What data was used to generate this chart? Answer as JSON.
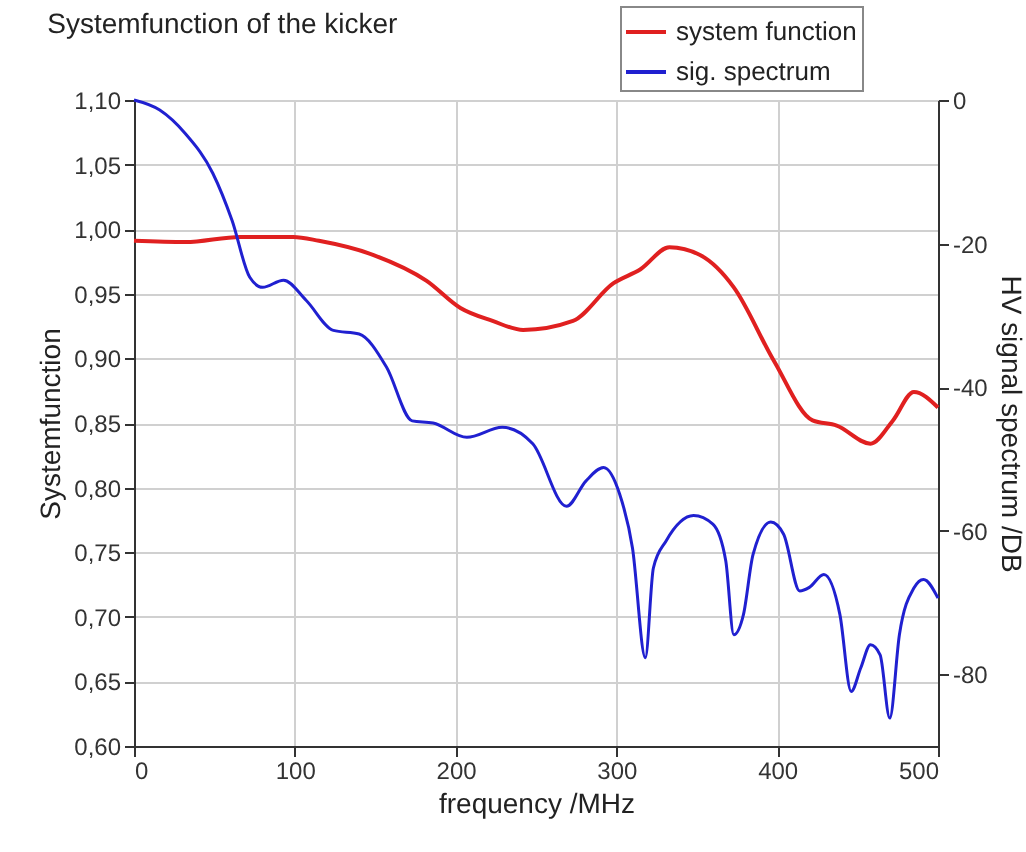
{
  "chart_data": {
    "type": "line",
    "title": "Systemfunction of the kicker",
    "xlabel": "frequency /MHz",
    "ylabel": "Systemfunction",
    "y2label": "HV signal spectrum /DB",
    "xlim": [
      0,
      500
    ],
    "xticks": [
      0,
      100,
      200,
      300,
      400,
      500
    ],
    "ylim": [
      0.6,
      1.1
    ],
    "yticks": [
      {
        "value": 0.6,
        "label": "0,60"
      },
      {
        "value": 0.65,
        "label": "0,65"
      },
      {
        "value": 0.7,
        "label": "0,70"
      },
      {
        "value": 0.75,
        "label": "0,75"
      },
      {
        "value": 0.8,
        "label": "0,80"
      },
      {
        "value": 0.85,
        "label": "0,85"
      },
      {
        "value": 0.9,
        "label": "0,90"
      },
      {
        "value": 0.95,
        "label": "0,95"
      },
      {
        "value": 1.0,
        "label": "1,00"
      },
      {
        "value": 1.05,
        "label": "1,05"
      },
      {
        "value": 1.1,
        "label": "1,10"
      }
    ],
    "y2lim": [
      -90,
      0
    ],
    "y2ticks": [
      0,
      -20,
      -40,
      -60,
      -80
    ],
    "grid": true,
    "legend": "top right",
    "line_style": "solid",
    "series": [
      {
        "name": "system function",
        "color": "#e02020",
        "x": [
          0,
          32,
          66,
          99,
          115,
          149,
          182,
          203,
          223,
          242,
          273,
          298,
          315,
          333,
          352,
          373,
          398,
          422,
          437,
          458,
          472,
          485,
          500
        ],
        "values": [
          0.991,
          0.99,
          0.994,
          0.994,
          0.991,
          0.98,
          0.96,
          0.939,
          0.929,
          0.922,
          0.929,
          0.958,
          0.969,
          0.986,
          0.98,
          0.955,
          0.898,
          0.852,
          0.848,
          0.834,
          0.852,
          0.874,
          0.862
        ]
      },
      {
        "name": "sig. spectrum",
        "color": "#2020d0",
        "axis": "y2",
        "x": [
          0,
          16,
          32,
          49,
          61,
          72,
          80,
          93,
          107,
          124,
          140,
          157,
          173,
          186,
          207,
          229,
          248,
          269,
          281,
          292,
          302,
          310,
          318,
          323,
          331,
          348,
          360,
          368,
          373,
          379,
          385,
          396,
          404,
          414,
          420,
          429,
          439,
          446,
          452,
          458,
          464,
          470,
          476,
          485,
          491,
          500
        ],
        "values": [
          0,
          -1.4,
          -4.7,
          -10.2,
          -16.8,
          -24.7,
          -26.1,
          -25.1,
          -27.9,
          -32.1,
          -32.6,
          -37.2,
          -44.7,
          -45.0,
          -47.0,
          -45.6,
          -47.9,
          -56.6,
          -53.1,
          -51.2,
          -54.9,
          -62.4,
          -77.7,
          -65.2,
          -61.4,
          -57.9,
          -59.1,
          -64.2,
          -74.5,
          -71.7,
          -63.3,
          -58.8,
          -60.5,
          -68.4,
          -67.9,
          -66.1,
          -71.7,
          -82.4,
          -79.1,
          -75.9,
          -77.3,
          -86.1,
          -74.5,
          -68.0,
          -66.8,
          -69.4
        ]
      }
    ]
  }
}
